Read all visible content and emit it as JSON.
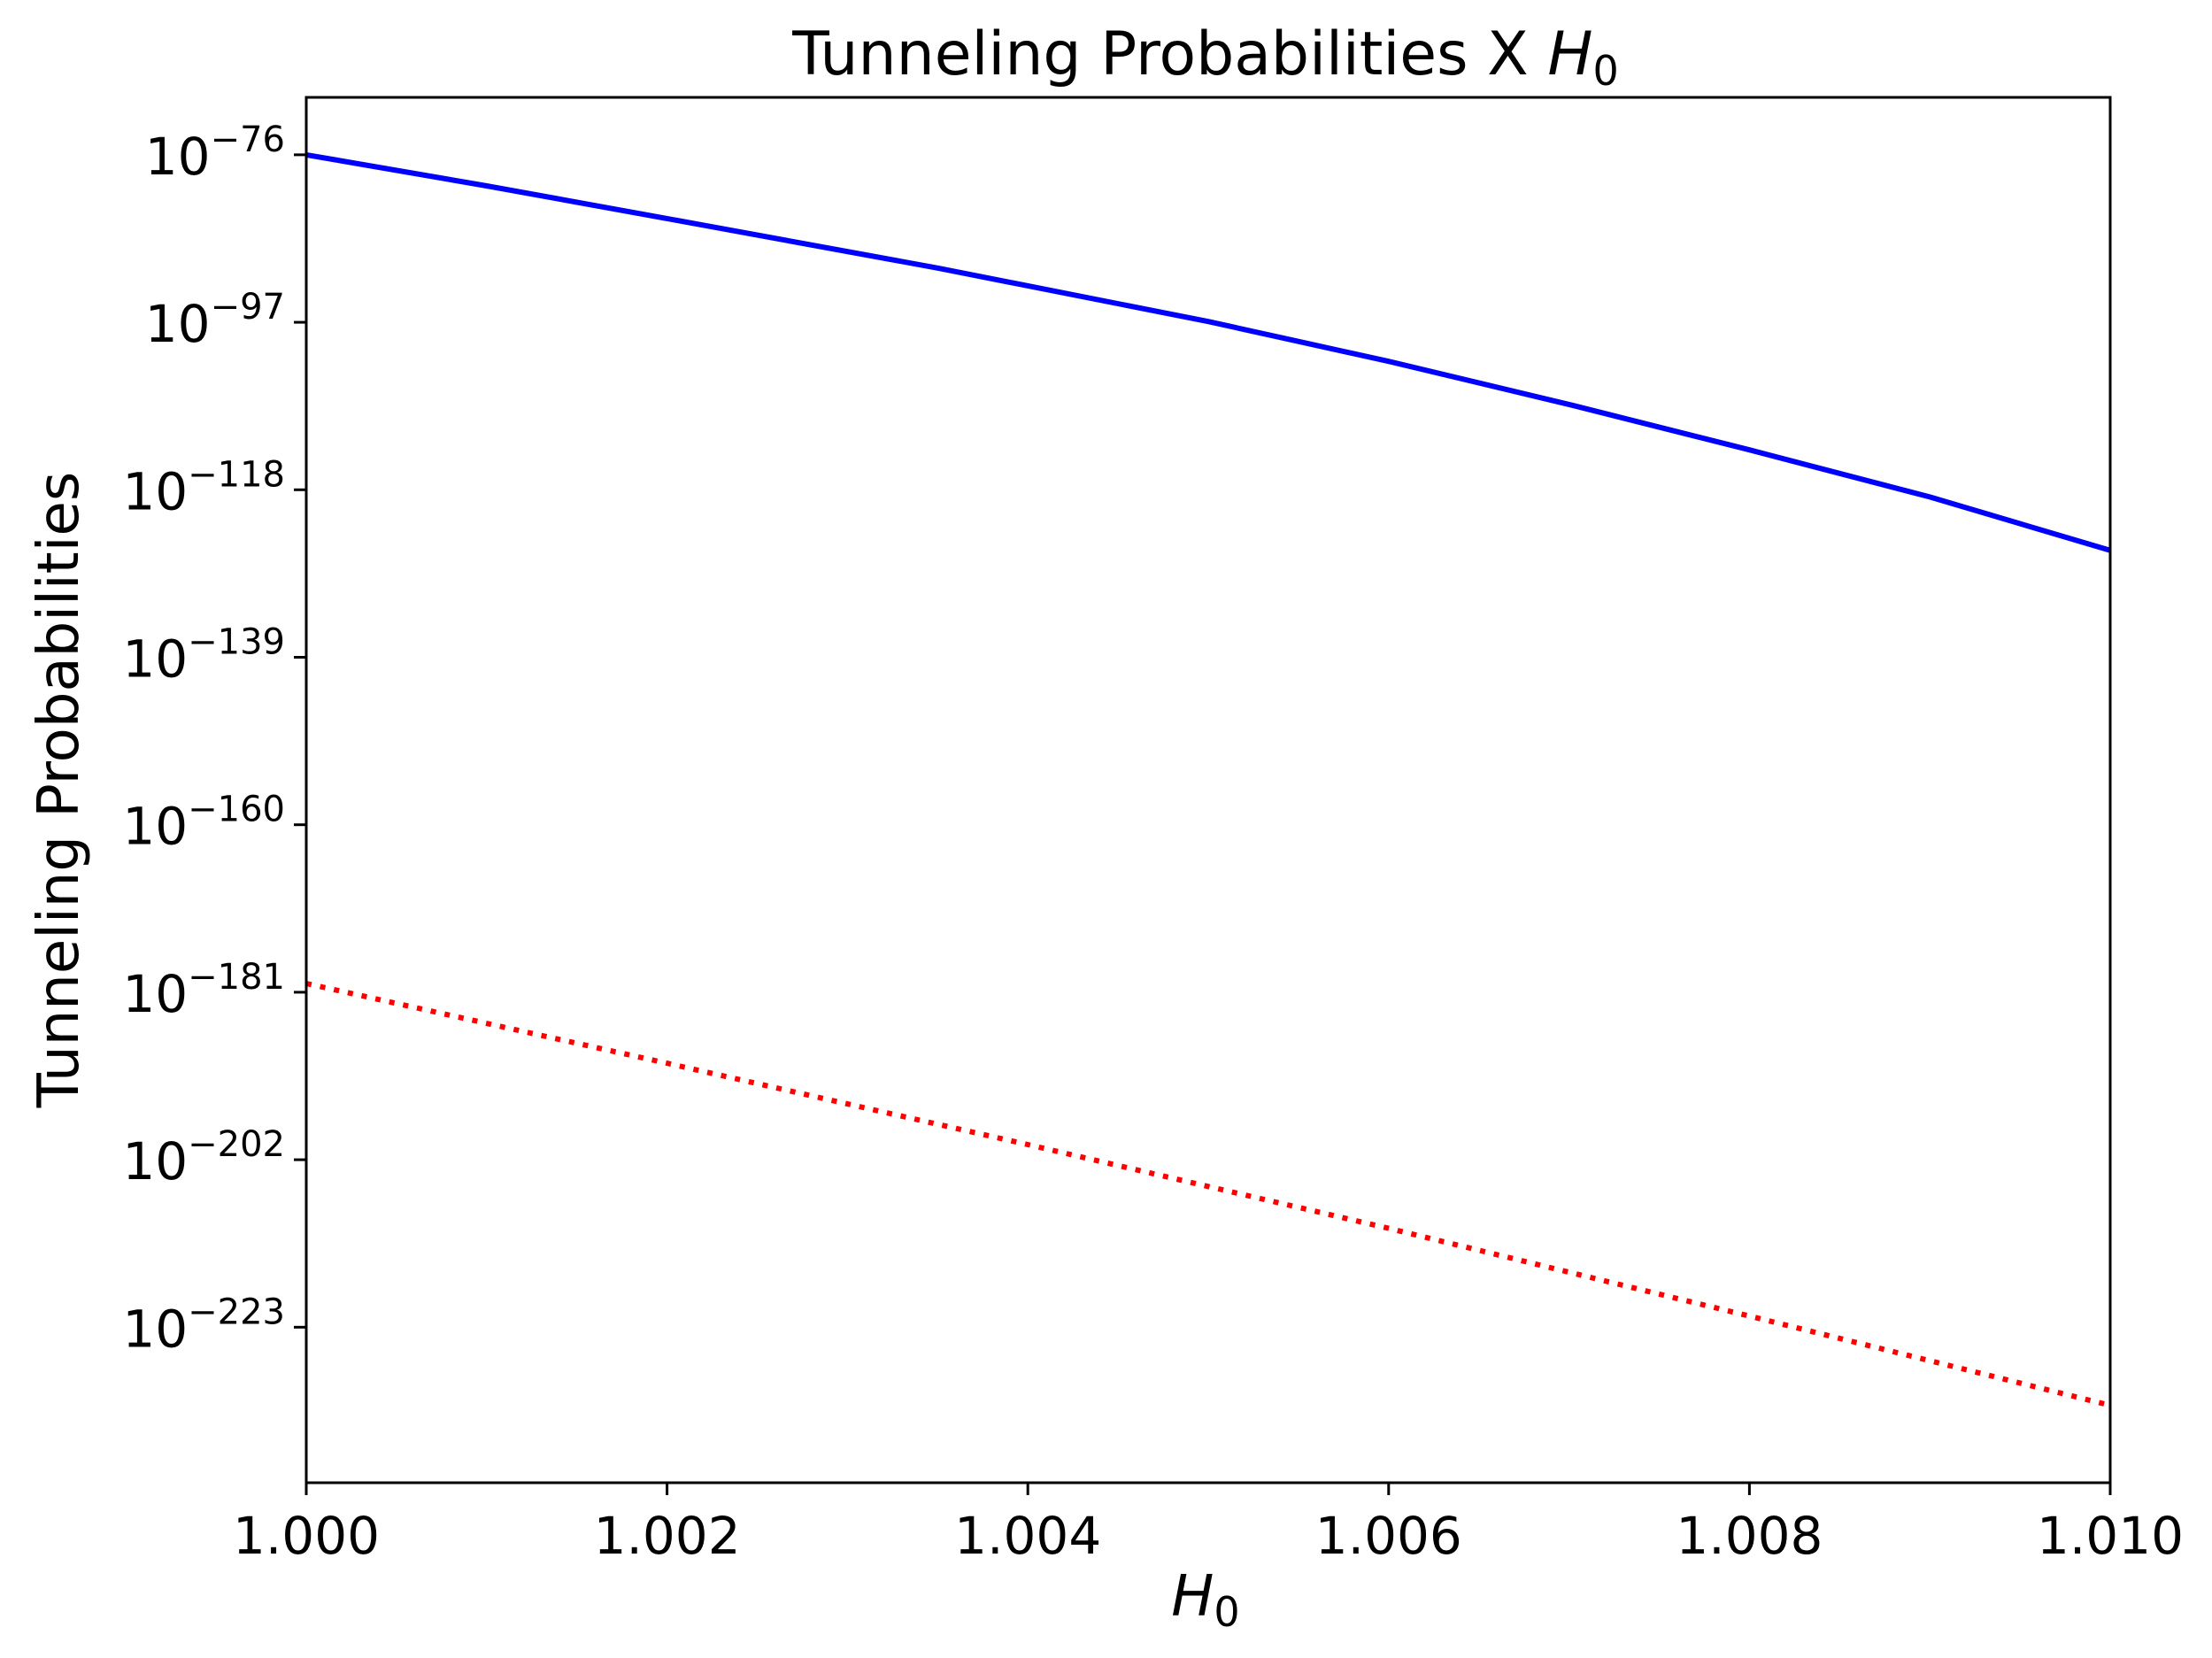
{
  "chart_data": {
    "type": "line",
    "title": "Tunneling Probabilities X ",
    "title_math": "H",
    "title_sub": "0",
    "xlabel_math": "H",
    "xlabel_sub": "0",
    "ylabel": "Tunneling Probabilities",
    "xlim": [
      1.0,
      1.01
    ],
    "ylim_log10": [
      -242.5,
      -68.8
    ],
    "yscale": "log",
    "grid": false,
    "xticks": [
      1.0,
      1.002,
      1.004,
      1.006,
      1.008,
      1.01
    ],
    "xtick_labels": [
      "1.000",
      "1.002",
      "1.004",
      "1.006",
      "1.008",
      "1.010"
    ],
    "yticks_log10": [
      -76,
      -97,
      -118,
      -139,
      -160,
      -181,
      -202,
      -223
    ],
    "ytick_base": "10",
    "ytick_exponents": [
      "−76",
      "−97",
      "−118",
      "−139",
      "−160",
      "−181",
      "−202",
      "−223"
    ],
    "series": [
      {
        "color": "#0000ff",
        "style": "solid",
        "x": [
          1.0,
          1.001,
          1.002,
          1.0035,
          1.005,
          1.006,
          1.007,
          1.008,
          1.009,
          1.01
        ],
        "log10_y": [
          -76.0,
          -79.9,
          -84.0,
          -90.2,
          -96.9,
          -101.9,
          -107.3,
          -113.0,
          -118.9,
          -125.6
        ]
      },
      {
        "color": "#ff0000",
        "style": "dotted",
        "x": [
          1.0,
          1.002,
          1.004,
          1.006,
          1.008,
          1.01
        ],
        "log10_y": [
          -179.9,
          -189.9,
          -200.1,
          -210.6,
          -221.6,
          -232.8
        ]
      }
    ]
  }
}
